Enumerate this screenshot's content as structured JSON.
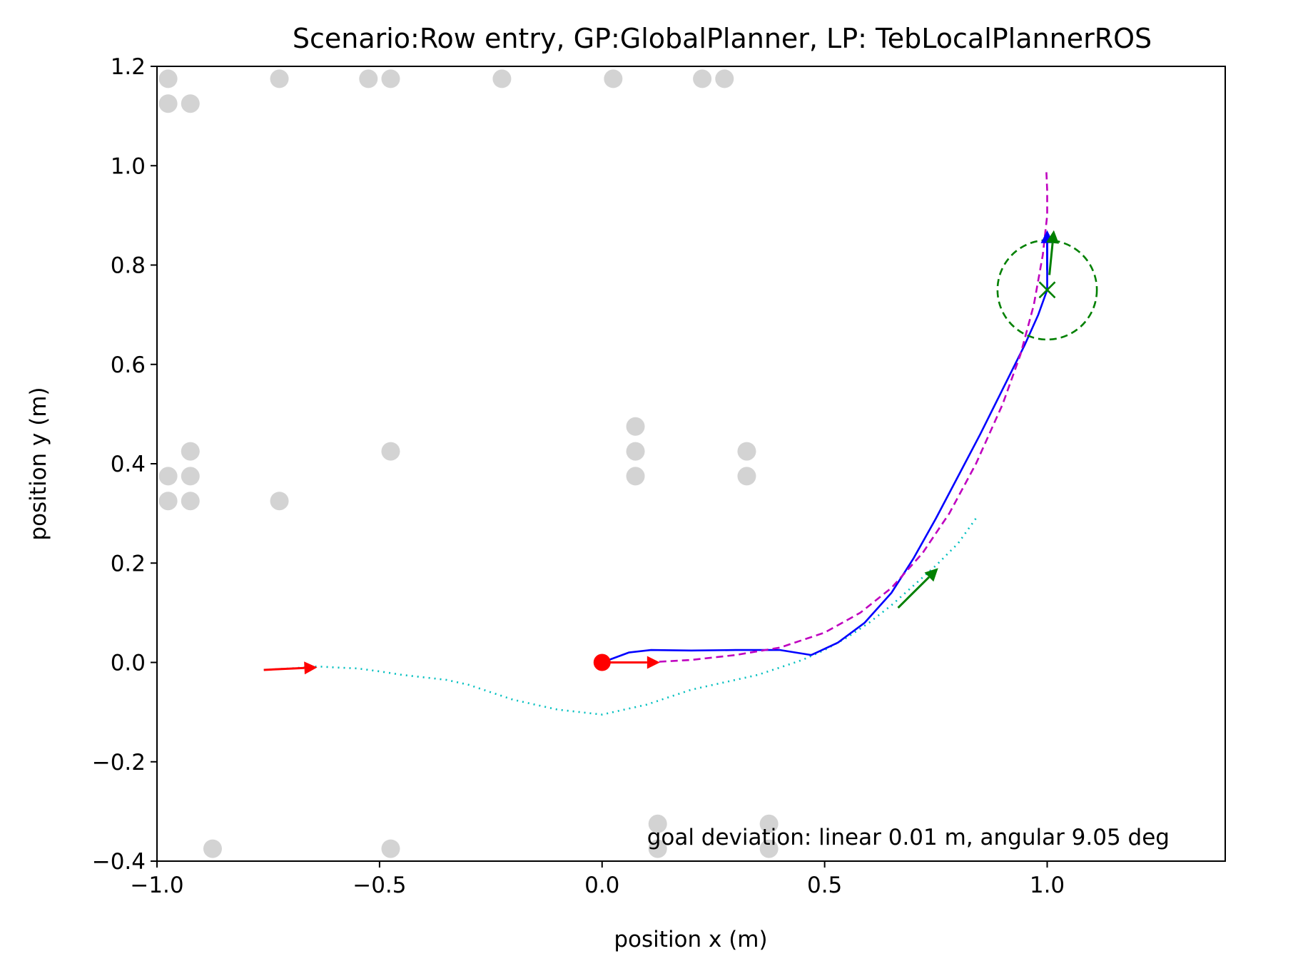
{
  "chart_data": {
    "type": "scatter",
    "title": "Scenario:Row entry, GP:GlobalPlanner, LP: TebLocalPlannerROS",
    "xlabel": "position x (m)",
    "ylabel": "position y (m)",
    "xlim": [
      -1.0,
      1.4
    ],
    "ylim": [
      -0.4,
      1.2
    ],
    "xticks": [
      -1.0,
      -0.5,
      0.0,
      0.5,
      1.0
    ],
    "xtick_labels": [
      "−1.0",
      "−0.5",
      "0.0",
      "0.5",
      "1.0"
    ],
    "yticks": [
      -0.4,
      -0.2,
      0.0,
      0.2,
      0.4,
      0.6,
      0.8,
      1.0,
      1.2
    ],
    "ytick_labels": [
      "−0.4",
      "−0.2",
      "0.0",
      "0.2",
      "0.4",
      "0.6",
      "0.8",
      "1.0",
      "1.2"
    ],
    "grid": false,
    "annotation": "goal deviation: linear 0.01 m, angular 9.05 deg",
    "obstacles": {
      "color": "#d3d3d3",
      "points": [
        [
          -0.975,
          1.175
        ],
        [
          -0.975,
          1.125
        ],
        [
          -0.925,
          1.125
        ],
        [
          -0.725,
          1.175
        ],
        [
          -0.525,
          1.175
        ],
        [
          -0.475,
          1.175
        ],
        [
          -0.225,
          1.175
        ],
        [
          0.025,
          1.175
        ],
        [
          0.225,
          1.175
        ],
        [
          0.275,
          1.175
        ],
        [
          -0.925,
          0.425
        ],
        [
          -0.975,
          0.375
        ],
        [
          -0.925,
          0.375
        ],
        [
          -0.975,
          0.325
        ],
        [
          -0.925,
          0.325
        ],
        [
          -0.725,
          0.325
        ],
        [
          -0.475,
          0.425
        ],
        [
          0.075,
          0.475
        ],
        [
          0.075,
          0.425
        ],
        [
          0.075,
          0.375
        ],
        [
          0.325,
          0.425
        ],
        [
          0.325,
          0.375
        ],
        [
          0.125,
          -0.325
        ],
        [
          0.125,
          -0.375
        ],
        [
          0.375,
          -0.325
        ],
        [
          0.375,
          -0.375
        ],
        [
          -0.875,
          -0.375
        ],
        [
          -0.475,
          -0.375
        ]
      ]
    },
    "series": [
      {
        "color": "#00bfbf",
        "style": "dotted",
        "points": [
          [
            -0.76,
            -0.015
          ],
          [
            -0.7,
            -0.012
          ],
          [
            -0.64,
            -0.008
          ],
          [
            -0.6,
            -0.01
          ],
          [
            -0.55,
            -0.012
          ],
          [
            -0.5,
            -0.018
          ],
          [
            -0.45,
            -0.025
          ],
          [
            -0.4,
            -0.03
          ],
          [
            -0.35,
            -0.035
          ],
          [
            -0.3,
            -0.045
          ],
          [
            -0.25,
            -0.06
          ],
          [
            -0.2,
            -0.075
          ],
          [
            -0.15,
            -0.085
          ],
          [
            -0.1,
            -0.095
          ],
          [
            -0.05,
            -0.1
          ],
          [
            0.0,
            -0.105
          ],
          [
            0.05,
            -0.095
          ],
          [
            0.1,
            -0.085
          ],
          [
            0.15,
            -0.07
          ],
          [
            0.2,
            -0.055
          ],
          [
            0.25,
            -0.045
          ],
          [
            0.3,
            -0.035
          ],
          [
            0.35,
            -0.025
          ],
          [
            0.4,
            -0.01
          ],
          [
            0.45,
            0.005
          ],
          [
            0.5,
            0.025
          ],
          [
            0.55,
            0.05
          ],
          [
            0.6,
            0.08
          ],
          [
            0.65,
            0.115
          ],
          [
            0.7,
            0.155
          ],
          [
            0.75,
            0.195
          ],
          [
            0.8,
            0.24
          ],
          [
            0.84,
            0.29
          ]
        ]
      },
      {
        "color": "#0000ff",
        "style": "solid",
        "points": [
          [
            0.0,
            0.0
          ],
          [
            0.06,
            0.02
          ],
          [
            0.11,
            0.025
          ],
          [
            0.2,
            0.024
          ],
          [
            0.3,
            0.025
          ],
          [
            0.4,
            0.025
          ],
          [
            0.47,
            0.015
          ],
          [
            0.53,
            0.04
          ],
          [
            0.59,
            0.08
          ],
          [
            0.65,
            0.14
          ],
          [
            0.7,
            0.21
          ],
          [
            0.75,
            0.29
          ],
          [
            0.8,
            0.375
          ],
          [
            0.85,
            0.46
          ],
          [
            0.9,
            0.55
          ],
          [
            0.95,
            0.64
          ],
          [
            0.98,
            0.7
          ],
          [
            1.0,
            0.75
          ],
          [
            1.0,
            0.82
          ],
          [
            1.0,
            0.86
          ]
        ]
      },
      {
        "color": "#bf00bf",
        "style": "dashed",
        "points": [
          [
            0.0,
            0.0
          ],
          [
            0.1,
            0.0
          ],
          [
            0.2,
            0.005
          ],
          [
            0.3,
            0.015
          ],
          [
            0.4,
            0.03
          ],
          [
            0.5,
            0.06
          ],
          [
            0.58,
            0.1
          ],
          [
            0.65,
            0.15
          ],
          [
            0.72,
            0.22
          ],
          [
            0.78,
            0.3
          ],
          [
            0.84,
            0.4
          ],
          [
            0.9,
            0.52
          ],
          [
            0.94,
            0.62
          ],
          [
            0.97,
            0.72
          ],
          [
            0.99,
            0.82
          ],
          [
            1.0,
            0.9
          ],
          [
            1.0,
            0.95
          ],
          [
            0.998,
            0.99
          ]
        ]
      }
    ],
    "arrows": [
      {
        "color": "#ff0000",
        "from": [
          -0.76,
          -0.015
        ],
        "to": [
          -0.64,
          -0.01
        ]
      },
      {
        "color": "#ff0000",
        "from": [
          0.0,
          0.0
        ],
        "to": [
          0.13,
          0.0
        ]
      },
      {
        "color": "#008000",
        "from": [
          0.665,
          0.11
        ],
        "to": [
          0.755,
          0.19
        ]
      },
      {
        "color": "#0000ff",
        "from": [
          1.0,
          0.79
        ],
        "to": [
          1.0,
          0.87
        ]
      },
      {
        "color": "#008000",
        "from": [
          1.005,
          0.78
        ],
        "to": [
          1.015,
          0.87
        ]
      }
    ],
    "start_point": {
      "color": "#ff0000",
      "x": 0.0,
      "y": 0.0
    },
    "goal": {
      "color": "#008000",
      "x": 1.0,
      "y": 0.75,
      "radius": 0.1,
      "marker": "x"
    }
  }
}
